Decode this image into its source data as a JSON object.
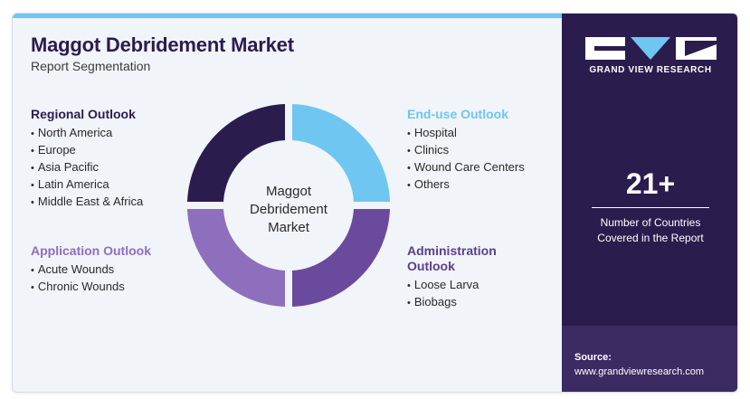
{
  "header": {
    "title": "Maggot Debridement Market",
    "subtitle": "Report Segmentation"
  },
  "segments": {
    "regional": {
      "title": "Regional Outlook",
      "items": [
        "North America",
        "Europe",
        "Asia Pacific",
        "Latin America",
        "Middle East & Africa"
      ]
    },
    "application": {
      "title": "Application Outlook",
      "items": [
        "Acute Wounds",
        "Chronic Wounds"
      ]
    },
    "enduse": {
      "title": "End-use Outlook",
      "items": [
        "Hospital",
        "Clinics",
        "Wound Care Centers",
        "Others"
      ]
    },
    "administration": {
      "title_line1": "Administration",
      "title_line2": "Outlook",
      "items": [
        "Loose Larva",
        "Biobags"
      ]
    }
  },
  "donut": {
    "center_line1": "Maggot",
    "center_line2": "Debridement",
    "center_line3": "Market",
    "quadrant_colors": [
      "#6ec6f1",
      "#6a4a9c",
      "#8e6fbd",
      "#2b1c4e"
    ]
  },
  "sidebar": {
    "brand": "GRAND VIEW RESEARCH",
    "stat_value": "21+",
    "stat_caption_line1": "Number of Countries",
    "stat_caption_line2": "Covered in the Report",
    "source_label": "Source:",
    "source_url": "www.grandviewresearch.com"
  },
  "colors": {
    "accent_light_blue": "#6ec6f1",
    "dark_purple": "#2b1c4e",
    "mid_purple": "#6a4a9c",
    "light_purple": "#8e6fbd"
  }
}
